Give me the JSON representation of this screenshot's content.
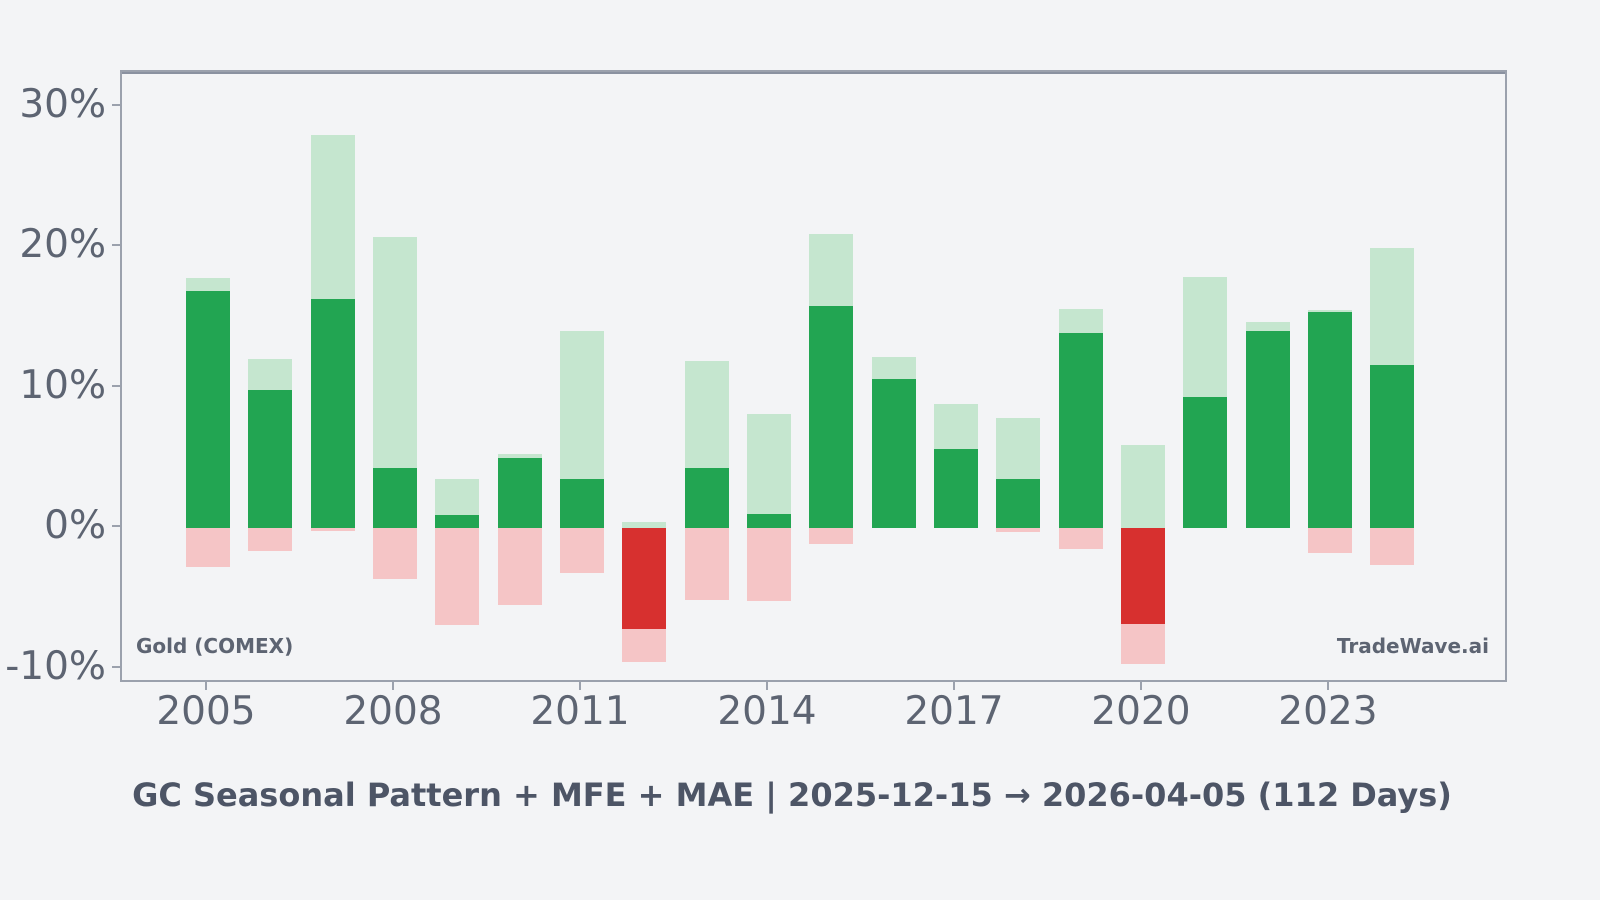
{
  "chart_data": {
    "type": "bar",
    "title": "GC Seasonal Pattern + MFE + MAE | 2025-12-15 → 2026-04-05 (112 Days)",
    "instrument_label": "Gold (COMEX)",
    "watermark": "TradeWave.ai",
    "value_unit": "percent",
    "grid": false,
    "legend_position": "none",
    "zero_line": true,
    "ylim": [
      -11.1,
      32.5
    ],
    "y_ticks": [
      -10,
      0,
      10,
      20,
      30
    ],
    "y_tick_labels": [
      "-10%",
      "0%",
      "10%",
      "20%",
      "30%"
    ],
    "x_tick_years": [
      2005,
      2008,
      2011,
      2014,
      2017,
      2020,
      2023
    ],
    "x_tick_labels": [
      "2005",
      "2008",
      "2011",
      "2014",
      "2017",
      "2020",
      "2023"
    ],
    "x": [
      2005,
      2006,
      2007,
      2008,
      2009,
      2010,
      2011,
      2012,
      2013,
      2014,
      2015,
      2016,
      2017,
      2018,
      2019,
      2020,
      2021,
      2022,
      2023,
      2024
    ],
    "series": [
      {
        "name": "MFE (max favorable excursion)",
        "color": "#c5e6cf",
        "values": [
          17.8,
          12.0,
          28.0,
          20.7,
          3.5,
          5.3,
          14.0,
          0.4,
          11.9,
          8.1,
          20.9,
          12.2,
          8.8,
          7.8,
          15.6,
          5.9,
          17.9,
          14.7,
          15.5,
          19.9
        ]
      },
      {
        "name": "Seasonal return",
        "color_positive": "#22a552",
        "color_negative": "#d7302f",
        "values": [
          16.9,
          9.8,
          16.3,
          4.3,
          0.9,
          5.0,
          3.5,
          -7.2,
          4.3,
          1.0,
          15.8,
          10.6,
          5.6,
          3.5,
          13.9,
          -6.8,
          9.3,
          14.0,
          15.4,
          11.6
        ]
      },
      {
        "name": "MAE (max adverse excursion)",
        "color": "#f5c5c6",
        "values": [
          -2.8,
          -1.6,
          -0.2,
          -3.6,
          -6.9,
          -5.5,
          -3.2,
          -9.5,
          -5.1,
          -5.2,
          -1.1,
          0.0,
          0.0,
          -0.3,
          -1.5,
          -9.7,
          0.0,
          0.0,
          -1.8,
          -2.6
        ]
      }
    ],
    "colors": {
      "background": "#f3f4f6",
      "plot_border": "#9ba1ad",
      "zero_line": "#8a91a0",
      "tick_text": "#5d6472",
      "title_text": "#4d5566",
      "mfe_bar": "#c5e6cf",
      "return_positive_bar": "#22a552",
      "return_negative_bar": "#d7302f",
      "mae_bar": "#f5c5c6"
    }
  }
}
